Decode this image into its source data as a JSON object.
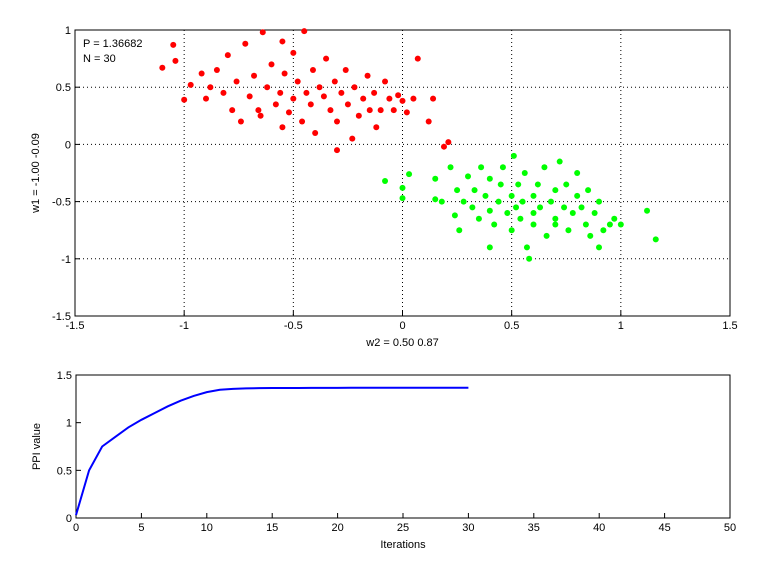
{
  "chart_data": [
    {
      "type": "scatter",
      "xlabel": "w2 = 0.50  0.87",
      "ylabel": "w1 = -1.00  -0.09",
      "annotations": [
        "P = 1.36682",
        "N = 30"
      ],
      "xlim": [
        -1.5,
        1.5
      ],
      "ylim": [
        -1.5,
        1
      ],
      "xticks": [
        -1.5,
        -1,
        -0.5,
        0,
        0.5,
        1,
        1.5
      ],
      "yticks": [
        -1.5,
        -1,
        -0.5,
        0,
        0.5,
        1
      ],
      "grid": true,
      "series": [
        {
          "color": "#ff0000",
          "x": [
            -1.1,
            -1.05,
            -1.04,
            -1.0,
            -0.97,
            -0.92,
            -0.9,
            -0.88,
            -0.85,
            -0.82,
            -0.8,
            -0.78,
            -0.76,
            -0.74,
            -0.72,
            -0.7,
            -0.68,
            -0.66,
            -0.64,
            -0.62,
            -0.6,
            -0.58,
            -0.56,
            -0.55,
            -0.54,
            -0.52,
            -0.5,
            -0.5,
            -0.48,
            -0.46,
            -0.45,
            -0.44,
            -0.42,
            -0.41,
            -0.4,
            -0.38,
            -0.36,
            -0.35,
            -0.33,
            -0.31,
            -0.3,
            -0.28,
            -0.26,
            -0.25,
            -0.23,
            -0.22,
            -0.2,
            -0.18,
            -0.16,
            -0.15,
            -0.13,
            -0.12,
            -0.1,
            -0.08,
            -0.06,
            -0.04,
            -0.02,
            0.0,
            0.02,
            0.05,
            0.07,
            0.14,
            0.12,
            -0.55,
            -0.65,
            0.19,
            0.21,
            -0.3
          ],
          "values": [
            0.67,
            0.87,
            0.73,
            0.39,
            0.52,
            0.62,
            0.4,
            0.5,
            0.65,
            0.45,
            0.78,
            0.3,
            0.55,
            0.2,
            0.88,
            0.42,
            0.6,
            0.3,
            0.98,
            0.5,
            0.7,
            0.35,
            0.45,
            0.15,
            0.62,
            0.28,
            0.8,
            0.4,
            0.55,
            0.2,
            0.99,
            0.45,
            0.35,
            0.65,
            0.1,
            0.5,
            0.42,
            0.75,
            0.3,
            0.55,
            0.2,
            0.45,
            0.65,
            0.35,
            0.05,
            0.5,
            0.25,
            0.4,
            0.6,
            0.3,
            0.45,
            0.15,
            0.3,
            0.55,
            0.4,
            0.3,
            0.43,
            0.38,
            0.28,
            0.4,
            0.75,
            0.4,
            0.2,
            0.9,
            0.25,
            -0.02,
            0.02,
            -0.05
          ]
        },
        {
          "color": "#00ff00",
          "x": [
            -0.08,
            0.0,
            0.0,
            0.03,
            0.15,
            0.15,
            0.18,
            0.22,
            0.24,
            0.25,
            0.26,
            0.28,
            0.3,
            0.32,
            0.33,
            0.35,
            0.36,
            0.38,
            0.4,
            0.4,
            0.42,
            0.44,
            0.45,
            0.46,
            0.48,
            0.5,
            0.5,
            0.51,
            0.52,
            0.53,
            0.54,
            0.55,
            0.56,
            0.57,
            0.58,
            0.6,
            0.6,
            0.62,
            0.63,
            0.65,
            0.66,
            0.68,
            0.7,
            0.7,
            0.72,
            0.74,
            0.75,
            0.76,
            0.78,
            0.8,
            0.8,
            0.82,
            0.84,
            0.85,
            0.86,
            0.88,
            0.9,
            0.9,
            0.92,
            0.95,
            0.97,
            1.0,
            1.12,
            1.16,
            0.4,
            0.7,
            0.6
          ],
          "values": [
            -0.32,
            -0.38,
            -0.47,
            -0.26,
            -0.3,
            -0.48,
            -0.5,
            -0.2,
            -0.62,
            -0.4,
            -0.75,
            -0.5,
            -0.28,
            -0.55,
            -0.4,
            -0.65,
            -0.2,
            -0.45,
            -0.58,
            -0.3,
            -0.7,
            -0.5,
            -0.35,
            -0.2,
            -0.6,
            -0.45,
            -0.75,
            -0.1,
            -0.55,
            -0.35,
            -0.65,
            -0.5,
            -0.25,
            -0.9,
            -1.0,
            -0.45,
            -0.7,
            -0.35,
            -0.55,
            -0.2,
            -0.8,
            -0.5,
            -0.4,
            -0.65,
            -0.15,
            -0.55,
            -0.35,
            -0.75,
            -0.6,
            -0.45,
            -0.25,
            -0.55,
            -0.7,
            -0.4,
            -0.8,
            -0.6,
            -0.9,
            -0.5,
            -0.75,
            -0.7,
            -0.65,
            -0.7,
            -0.58,
            -0.83,
            -0.9,
            -0.7,
            -0.6
          ]
        }
      ]
    },
    {
      "type": "line",
      "xlabel": "Iterations",
      "ylabel": "PPI value",
      "xlim": [
        0,
        50
      ],
      "ylim": [
        0,
        1.5
      ],
      "xticks": [
        0,
        5,
        10,
        15,
        20,
        25,
        30,
        35,
        40,
        45,
        50
      ],
      "yticks": [
        0,
        0.5,
        1,
        1.5
      ],
      "grid": false,
      "series": [
        {
          "color": "#0000ff",
          "x": [
            0,
            1,
            2,
            3,
            4,
            5,
            6,
            7,
            8,
            9,
            10,
            11,
            12,
            13,
            14,
            15,
            16,
            17,
            18,
            19,
            20,
            21,
            22,
            23,
            24,
            25,
            26,
            27,
            28,
            29,
            30
          ],
          "values": [
            0.03,
            0.5,
            0.75,
            0.85,
            0.95,
            1.03,
            1.1,
            1.17,
            1.23,
            1.28,
            1.32,
            1.345,
            1.355,
            1.36,
            1.362,
            1.363,
            1.364,
            1.364,
            1.365,
            1.365,
            1.365,
            1.366,
            1.366,
            1.366,
            1.366,
            1.366,
            1.3665,
            1.3666,
            1.3667,
            1.3668,
            1.36682
          ]
        }
      ]
    }
  ]
}
